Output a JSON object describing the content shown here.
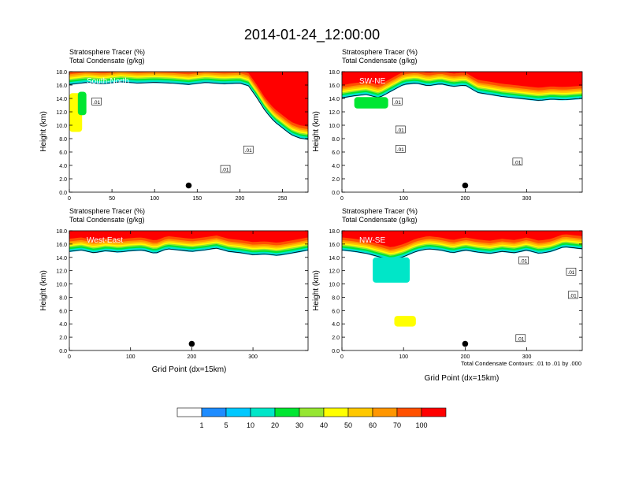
{
  "title": "2014-01-24_12:00:00",
  "xlabel": "Grid Point (dx=15km)",
  "ylabel": "Height (km)",
  "contour_note": "Total Condensate Contours: .01 to .01 by .000",
  "colorbar": {
    "labels": [
      "1",
      "5",
      "10",
      "20",
      "30",
      "40",
      "50",
      "60",
      "70",
      "100"
    ],
    "colors": [
      "#ffffff",
      "#1e8cff",
      "#00c8ff",
      "#00e6c8",
      "#00e632",
      "#96e632",
      "#ffff00",
      "#ffc800",
      "#ff9600",
      "#ff5000",
      "#ff0000"
    ]
  },
  "chart_data": [
    {
      "type": "heatmap",
      "header_1": "Stratosphere Tracer   (%)",
      "header_2": "Total Condensate   (g/kg)",
      "label": "South-North",
      "xlim": [
        0,
        280
      ],
      "xticks": [
        "0",
        "50",
        "100",
        "150",
        "200",
        "250"
      ],
      "ylim": [
        0,
        18
      ],
      "yticks": [
        "0.0",
        "2.0",
        "4.0",
        "6.0",
        "8.0",
        "10.0",
        "12.0",
        "14.0",
        "16.0",
        "18.0"
      ],
      "tropopause_km": [
        [
          0,
          16.0
        ],
        [
          20,
          16.3
        ],
        [
          40,
          16.1
        ],
        [
          60,
          16.4
        ],
        [
          80,
          16.2
        ],
        [
          100,
          16.3
        ],
        [
          120,
          16.2
        ],
        [
          140,
          16.0
        ],
        [
          160,
          16.3
        ],
        [
          180,
          16.1
        ],
        [
          200,
          16.2
        ],
        [
          210,
          15.8
        ],
        [
          220,
          14.0
        ],
        [
          230,
          12.0
        ],
        [
          240,
          10.5
        ],
        [
          250,
          9.5
        ],
        [
          260,
          8.5
        ],
        [
          270,
          8.0
        ],
        [
          280,
          7.8
        ]
      ],
      "features": [
        {
          "x": [
            0,
            15
          ],
          "top": 14.8,
          "bottom": 9.0,
          "value": 40
        },
        {
          "x": [
            10,
            20
          ],
          "top": 15.0,
          "bottom": 11.5,
          "value": 20
        }
      ],
      "contour_labels": [
        {
          "text": ".01",
          "x": 32,
          "y": 13.5
        },
        {
          "text": ".01",
          "x": 210,
          "y": 6.3
        },
        {
          "text": ".01",
          "x": 183,
          "y": 3.4
        }
      ],
      "dot": [
        140,
        1.0
      ]
    },
    {
      "type": "heatmap",
      "header_1": "Stratosphere Tracer   (%)",
      "header_2": "Total Condensate   (g/kg)",
      "label": "SW-NE",
      "xlim": [
        0,
        390
      ],
      "xticks": [
        "0",
        "100",
        "200",
        "300"
      ],
      "ylim": [
        0,
        18
      ],
      "yticks": [
        "0.0",
        "2.0",
        "4.0",
        "6.0",
        "8.0",
        "10.0",
        "12.0",
        "14.0",
        "16.0",
        "18.0"
      ],
      "tropopause_km": [
        [
          0,
          14.0
        ],
        [
          20,
          14.3
        ],
        [
          40,
          14.5
        ],
        [
          60,
          14.0
        ],
        [
          80,
          15.0
        ],
        [
          100,
          16.0
        ],
        [
          120,
          16.2
        ],
        [
          140,
          15.8
        ],
        [
          160,
          16.1
        ],
        [
          180,
          15.7
        ],
        [
          200,
          15.9
        ],
        [
          220,
          14.8
        ],
        [
          240,
          14.5
        ],
        [
          260,
          14.2
        ],
        [
          280,
          14.0
        ],
        [
          300,
          13.8
        ],
        [
          320,
          13.6
        ],
        [
          340,
          13.8
        ],
        [
          360,
          13.7
        ],
        [
          390,
          13.9
        ]
      ],
      "features": [
        {
          "x": [
            20,
            75
          ],
          "top": 14.2,
          "bottom": 12.5,
          "value": 20
        }
      ],
      "contour_labels": [
        {
          "text": ".01",
          "x": 90,
          "y": 13.5
        },
        {
          "text": ".01",
          "x": 95,
          "y": 9.3
        },
        {
          "text": ".01",
          "x": 95,
          "y": 6.4
        },
        {
          "text": ".01",
          "x": 285,
          "y": 4.5
        }
      ],
      "dot": [
        200,
        1.0
      ]
    },
    {
      "type": "heatmap",
      "header_1": "Stratosphere Tracer   (%)",
      "header_2": "Total Condensate   (g/kg)",
      "label": "West-East",
      "xlim": [
        0,
        390
      ],
      "xticks": [
        "0",
        "100",
        "200",
        "300"
      ],
      "ylim": [
        0,
        18
      ],
      "yticks": [
        "0.0",
        "2.0",
        "4.0",
        "6.0",
        "8.0",
        "10.0",
        "12.0",
        "14.0",
        "16.0",
        "18.0"
      ],
      "tropopause_km": [
        [
          0,
          14.8
        ],
        [
          20,
          15.0
        ],
        [
          40,
          14.6
        ],
        [
          60,
          14.9
        ],
        [
          80,
          14.7
        ],
        [
          100,
          14.9
        ],
        [
          120,
          15.0
        ],
        [
          140,
          14.5
        ],
        [
          160,
          15.2
        ],
        [
          180,
          15.0
        ],
        [
          200,
          14.8
        ],
        [
          220,
          15.0
        ],
        [
          240,
          15.3
        ],
        [
          260,
          14.8
        ],
        [
          280,
          14.6
        ],
        [
          300,
          14.3
        ],
        [
          320,
          14.4
        ],
        [
          340,
          14.2
        ],
        [
          360,
          14.5
        ],
        [
          390,
          15.0
        ]
      ],
      "features": [],
      "contour_labels": [],
      "dot": [
        200,
        1.0
      ]
    },
    {
      "type": "heatmap",
      "header_1": "Stratosphere Tracer   (%)",
      "header_2": "Total Condensate   (g/kg)",
      "label": "NW-SE",
      "xlim": [
        0,
        390
      ],
      "xticks": [
        "0",
        "100",
        "200",
        "300"
      ],
      "ylim": [
        0,
        18
      ],
      "yticks": [
        "0.0",
        "2.0",
        "4.0",
        "6.0",
        "8.0",
        "10.0",
        "12.0",
        "14.0",
        "16.0",
        "18.0"
      ],
      "tropopause_km": [
        [
          0,
          15.0
        ],
        [
          20,
          14.8
        ],
        [
          40,
          14.5
        ],
        [
          60,
          14.0
        ],
        [
          80,
          13.5
        ],
        [
          100,
          14.0
        ],
        [
          120,
          14.8
        ],
        [
          140,
          15.2
        ],
        [
          160,
          15.0
        ],
        [
          180,
          14.6
        ],
        [
          200,
          15.0
        ],
        [
          220,
          14.7
        ],
        [
          240,
          14.5
        ],
        [
          260,
          14.8
        ],
        [
          280,
          14.6
        ],
        [
          300,
          15.0
        ],
        [
          320,
          14.5
        ],
        [
          340,
          14.8
        ],
        [
          360,
          15.5
        ],
        [
          390,
          15.2
        ]
      ],
      "features": [
        {
          "x": [
            50,
            110
          ],
          "top": 14.0,
          "bottom": 10.2,
          "value": 10
        },
        {
          "x": [
            85,
            120
          ],
          "top": 5.2,
          "bottom": 3.6,
          "value": 40
        }
      ],
      "contour_labels": [
        {
          "text": ".01",
          "x": 295,
          "y": 13.5
        },
        {
          "text": ".01",
          "x": 372,
          "y": 11.8
        },
        {
          "text": ".01",
          "x": 375,
          "y": 8.3
        },
        {
          "text": ".01",
          "x": 290,
          "y": 1.8
        }
      ],
      "dot": [
        200,
        1.0
      ]
    }
  ]
}
